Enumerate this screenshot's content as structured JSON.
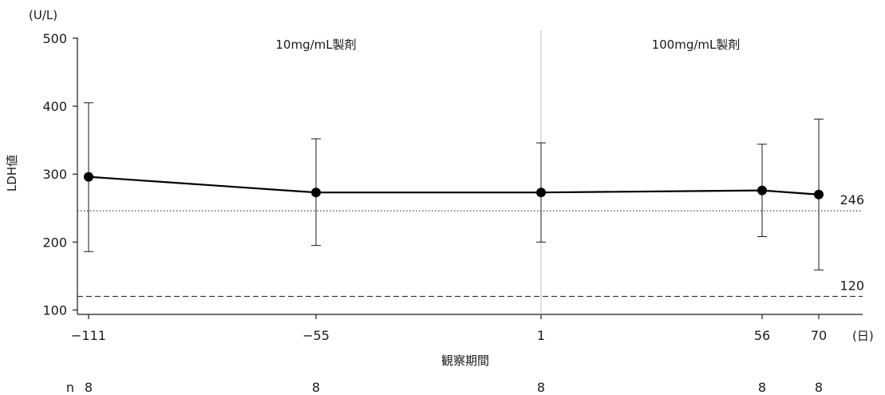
{
  "chart_data": {
    "type": "line",
    "title": "",
    "xlabel": "観察期間",
    "x_unit": "(日)",
    "ylabel": "LDH値",
    "y_unit": "(U/L)",
    "ylim": [
      95,
      505
    ],
    "y_ticks": [
      100,
      200,
      300,
      400,
      500
    ],
    "grid": false,
    "x": [
      -111,
      -55,
      1,
      56,
      70
    ],
    "x_tick_labels": [
      "−111",
      "−55",
      "1",
      "56",
      "70"
    ],
    "series": [
      {
        "values": [
          296,
          273,
          273,
          276,
          270
        ],
        "error_upper": [
          405,
          352,
          346,
          344,
          381
        ],
        "error_lower": [
          186,
          195,
          200,
          208,
          159
        ]
      }
    ],
    "reference_lines": [
      {
        "value": 246,
        "label": "246",
        "style": "dotted"
      },
      {
        "value": 120,
        "label": "120",
        "style": "dashed"
      }
    ],
    "period_divider_x": 1,
    "periods": [
      "10mg/mL製剤",
      "100mg/mL製剤"
    ],
    "n_label": "n",
    "n_values": [
      8,
      8,
      8,
      8,
      8
    ]
  }
}
